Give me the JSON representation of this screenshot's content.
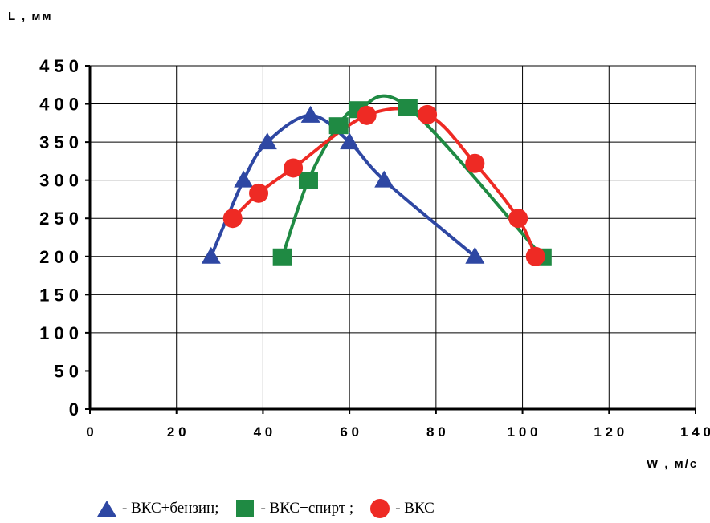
{
  "chart_data": {
    "type": "line",
    "title": "",
    "ylabel": "L , мм",
    "xlabel": "W , м/с",
    "xlim": [
      0,
      140
    ],
    "ylim": [
      0,
      450
    ],
    "xticks": [
      0,
      20,
      40,
      60,
      80,
      100,
      120,
      140
    ],
    "yticks": [
      0,
      50,
      100,
      150,
      200,
      250,
      300,
      350,
      400,
      450
    ],
    "grid": true,
    "legend_position": "bottom",
    "series": [
      {
        "name": "- ВКС+бензин;",
        "color": "#2e47a3",
        "marker": "triangle",
        "points": [
          [
            28,
            200
          ],
          [
            35.5,
            300
          ],
          [
            41,
            350
          ],
          [
            51,
            385
          ],
          [
            60,
            350
          ],
          [
            68,
            300
          ],
          [
            89,
            200
          ]
        ]
      },
      {
        "name": "- ВКС+спирт ;",
        "color": "#1f8a43",
        "marker": "square",
        "points": [
          [
            44.5,
            200
          ],
          [
            50.5,
            300
          ],
          [
            57.5,
            372
          ],
          [
            62,
            393
          ],
          [
            73.5,
            396
          ],
          [
            104.5,
            200
          ]
        ]
      },
      {
        "name": "- ВКС",
        "color": "#ee2a24",
        "marker": "circle",
        "points": [
          [
            33,
            250
          ],
          [
            39,
            283
          ],
          [
            47,
            316
          ],
          [
            64,
            385
          ],
          [
            78,
            386
          ],
          [
            89,
            322
          ],
          [
            99,
            250
          ],
          [
            103,
            200
          ]
        ]
      }
    ]
  }
}
